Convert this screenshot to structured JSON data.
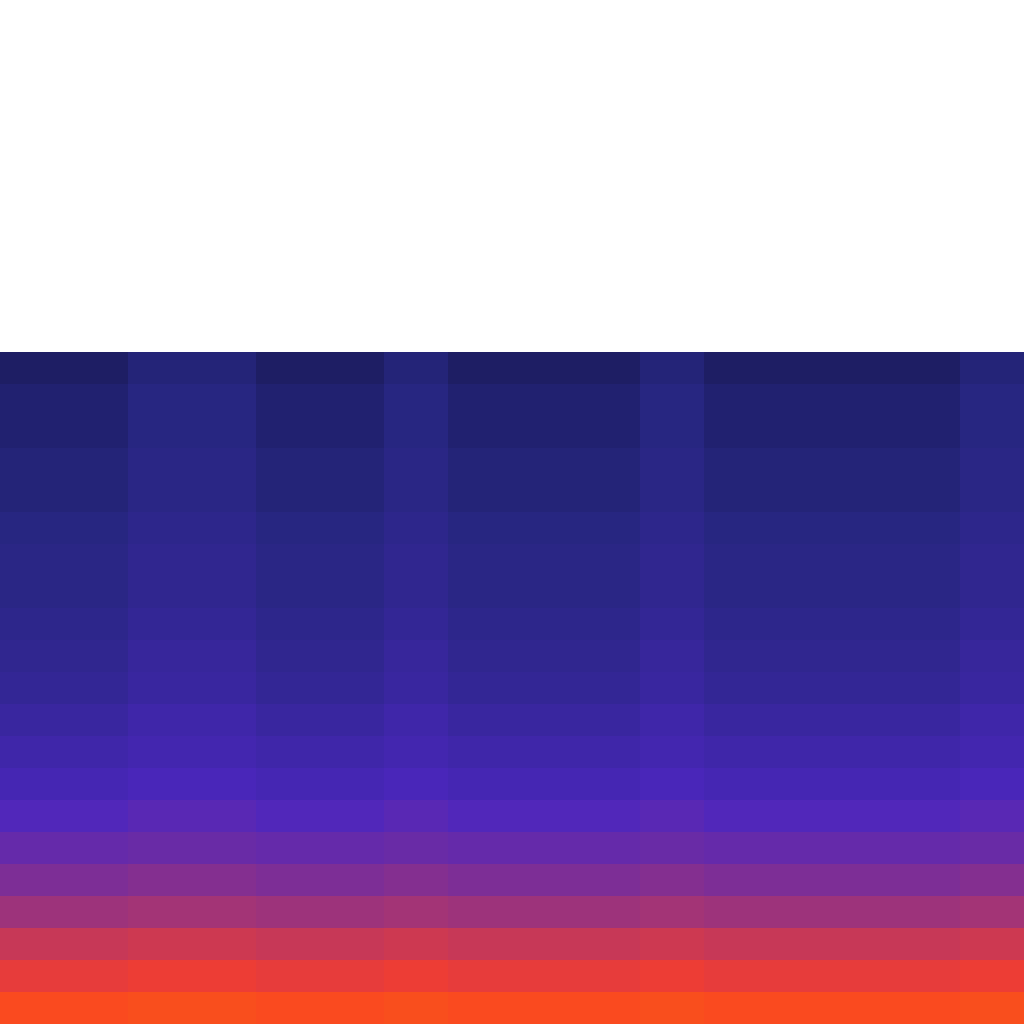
{
  "chart_data": {
    "type": "heatmap",
    "color": "CMRmap",
    "tick_labels": false,
    "color_range": [
      0,
      1
    ],
    "cells": [
      [
        null,
        null,
        null,
        null,
        null,
        null,
        null,
        null,
        null,
        null,
        null,
        null,
        null,
        null,
        null,
        null
      ],
      [
        null,
        null,
        null,
        null,
        null,
        null,
        null,
        null,
        null,
        null,
        null,
        null,
        null,
        null,
        null,
        null
      ],
      [
        null,
        null,
        null,
        null,
        null,
        null,
        null,
        null,
        null,
        null,
        null,
        null,
        null,
        null,
        null,
        null
      ],
      [
        null,
        null,
        null,
        null,
        null,
        null,
        null,
        null,
        null,
        null,
        null,
        null,
        null,
        null,
        null,
        null
      ],
      [
        null,
        null,
        null,
        null,
        null,
        null,
        null,
        null,
        null,
        null,
        null,
        null,
        null,
        null,
        null,
        null
      ],
      [
        null,
        null,
        null,
        null,
        null,
        null,
        null,
        null,
        null,
        null,
        null,
        null,
        null,
        null,
        null,
        null
      ],
      [
        null,
        null,
        null,
        null,
        null,
        null,
        null,
        null,
        null,
        null,
        null,
        null,
        null,
        null,
        null,
        null
      ],
      [
        null,
        null,
        null,
        null,
        null,
        null,
        null,
        null,
        null,
        null,
        null,
        null,
        null,
        null,
        null,
        null
      ],
      [
        null,
        null,
        null,
        null,
        null,
        null,
        null,
        null,
        null,
        null,
        null,
        null,
        null,
        null,
        null,
        null
      ],
      [
        null,
        null,
        null,
        null,
        null,
        null,
        null,
        null,
        null,
        null,
        null,
        null,
        null,
        null,
        null,
        null
      ],
      [
        null,
        null,
        null,
        null,
        null,
        null,
        null,
        null,
        null,
        null,
        null,
        null,
        null,
        null,
        null,
        null
      ],
      [
        0.1,
        0.1,
        0.12,
        0.12,
        0.1,
        0.1,
        0.12,
        0.1,
        0.1,
        0.1,
        0.12,
        0.1,
        0.1,
        0.1,
        0.1,
        0.12
      ],
      [
        0.11,
        0.11,
        0.13,
        0.13,
        0.11,
        0.11,
        0.13,
        0.11,
        0.11,
        0.11,
        0.13,
        0.11,
        0.11,
        0.11,
        0.11,
        0.13
      ],
      [
        0.11,
        0.11,
        0.13,
        0.13,
        0.11,
        0.11,
        0.13,
        0.11,
        0.11,
        0.11,
        0.13,
        0.11,
        0.11,
        0.11,
        0.11,
        0.13
      ],
      [
        0.12,
        0.12,
        0.14,
        0.14,
        0.12,
        0.12,
        0.14,
        0.12,
        0.12,
        0.12,
        0.14,
        0.12,
        0.12,
        0.12,
        0.12,
        0.14
      ],
      [
        0.12,
        0.12,
        0.14,
        0.14,
        0.12,
        0.12,
        0.14,
        0.12,
        0.12,
        0.12,
        0.14,
        0.12,
        0.12,
        0.12,
        0.12,
        0.14
      ],
      [
        0.13,
        0.13,
        0.15,
        0.15,
        0.13,
        0.13,
        0.15,
        0.13,
        0.13,
        0.13,
        0.15,
        0.13,
        0.13,
        0.13,
        0.13,
        0.15
      ],
      [
        0.14,
        0.14,
        0.16,
        0.16,
        0.14,
        0.14,
        0.16,
        0.14,
        0.14,
        0.14,
        0.16,
        0.14,
        0.14,
        0.14,
        0.14,
        0.16
      ],
      [
        0.14,
        0.14,
        0.16,
        0.16,
        0.14,
        0.14,
        0.16,
        0.14,
        0.14,
        0.14,
        0.16,
        0.14,
        0.14,
        0.14,
        0.14,
        0.16
      ],
      [
        0.15,
        0.15,
        0.17,
        0.17,
        0.15,
        0.15,
        0.17,
        0.15,
        0.15,
        0.15,
        0.17,
        0.15,
        0.15,
        0.15,
        0.15,
        0.17
      ],
      [
        0.16,
        0.16,
        0.18,
        0.18,
        0.16,
        0.16,
        0.18,
        0.16,
        0.16,
        0.16,
        0.18,
        0.16,
        0.16,
        0.16,
        0.16,
        0.18
      ],
      [
        0.17,
        0.17,
        0.19,
        0.19,
        0.17,
        0.17,
        0.19,
        0.17,
        0.17,
        0.17,
        0.19,
        0.17,
        0.17,
        0.17,
        0.17,
        0.19
      ],
      [
        0.19,
        0.19,
        0.21,
        0.21,
        0.19,
        0.19,
        0.21,
        0.19,
        0.19,
        0.19,
        0.21,
        0.19,
        0.19,
        0.19,
        0.19,
        0.21
      ],
      [
        0.21,
        0.21,
        0.22,
        0.22,
        0.21,
        0.21,
        0.22,
        0.21,
        0.21,
        0.21,
        0.22,
        0.21,
        0.21,
        0.21,
        0.21,
        0.22
      ],
      [
        0.23,
        0.23,
        0.24,
        0.24,
        0.23,
        0.23,
        0.24,
        0.23,
        0.23,
        0.23,
        0.24,
        0.23,
        0.23,
        0.23,
        0.23,
        0.24
      ],
      [
        0.26,
        0.26,
        0.27,
        0.27,
        0.26,
        0.26,
        0.27,
        0.26,
        0.26,
        0.26,
        0.27,
        0.26,
        0.26,
        0.26,
        0.26,
        0.27
      ],
      [
        0.29,
        0.29,
        0.3,
        0.3,
        0.29,
        0.29,
        0.3,
        0.29,
        0.29,
        0.29,
        0.3,
        0.29,
        0.29,
        0.29,
        0.29,
        0.3
      ],
      [
        0.33,
        0.33,
        0.34,
        0.34,
        0.33,
        0.33,
        0.34,
        0.33,
        0.33,
        0.33,
        0.34,
        0.33,
        0.33,
        0.33,
        0.33,
        0.34
      ],
      [
        0.38,
        0.38,
        0.39,
        0.39,
        0.38,
        0.38,
        0.39,
        0.38,
        0.38,
        0.38,
        0.39,
        0.38,
        0.38,
        0.38,
        0.38,
        0.39
      ],
      [
        0.43,
        0.43,
        0.44,
        0.44,
        0.43,
        0.43,
        0.44,
        0.43,
        0.43,
        0.43,
        0.44,
        0.43,
        0.43,
        0.43,
        0.43,
        0.44
      ],
      [
        0.47,
        0.47,
        0.48,
        0.48,
        0.47,
        0.47,
        0.48,
        0.47,
        0.47,
        0.47,
        0.48,
        0.47,
        0.47,
        0.47,
        0.47,
        0.48
      ],
      [
        0.52,
        0.52,
        0.53,
        0.53,
        0.52,
        0.52,
        0.53,
        0.52,
        0.52,
        0.52,
        0.53,
        0.52,
        0.52,
        0.52,
        0.52,
        0.53
      ]
    ]
  }
}
